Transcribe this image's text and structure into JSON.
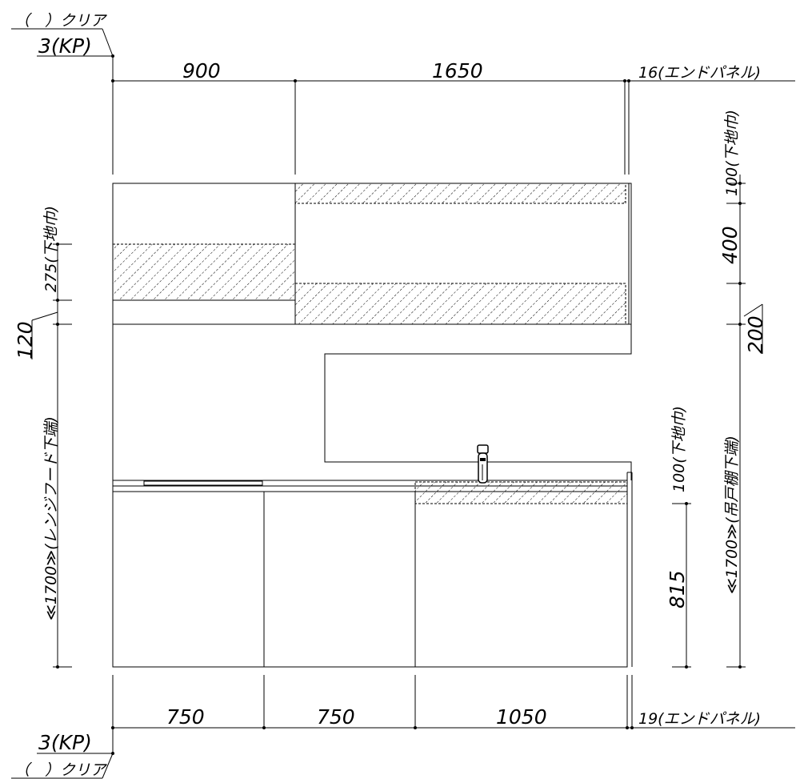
{
  "top_left": {
    "clear": "（　）クリア",
    "kp": "3(KP)"
  },
  "bottom_left": {
    "clear": "（　）クリア",
    "kp": "3(KP)"
  },
  "top_dims": {
    "w1": "900",
    "w2": "1650",
    "end_panel": "16(エンドパネル)"
  },
  "bottom_dims": {
    "w1": "750",
    "w2": "750",
    "w3": "1050",
    "end_panel": "19(エンドパネル)"
  },
  "left_dims": {
    "base": "275(下地巾)",
    "gap": "120",
    "hood": "≪1700≫(レンジフード下端)"
  },
  "right_dims": {
    "base_top": "100(下地巾)",
    "h400": "400",
    "h200": "200",
    "wall_bottom": "≪1700≫(吊戸棚下端)",
    "base_counter": "100(下地巾)",
    "h815": "815"
  }
}
